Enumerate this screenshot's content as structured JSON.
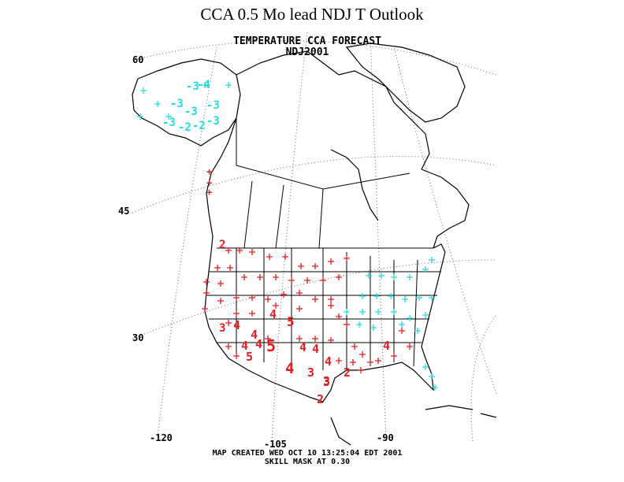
{
  "slide_title": "CCA 0.5 Mo lead NDJ T Outlook",
  "map_title": "TEMPERATURE CCA FORECAST",
  "map_season": "NDJ2001",
  "lat_labels": [
    "60",
    "45",
    "30"
  ],
  "lon_labels": [
    "-120",
    "-105",
    "-90"
  ],
  "footer_created": "MAP CREATED WED OCT 10 13:25:04 EDT 2001",
  "footer_skill": "SKILL MASK AT 0.30",
  "colors": {
    "warm": "#e81c1c",
    "cold": "#22dde0",
    "map_lines": "#000000",
    "grid": "#666666"
  },
  "forecast_values_warm": [
    "2",
    "4",
    "4",
    "5",
    "3",
    "4",
    "4",
    "4",
    "5",
    "5",
    "4",
    "4",
    "4",
    "3",
    "3",
    "4",
    "3",
    "2",
    "2",
    "4"
  ],
  "forecast_values_cold": [
    "-3",
    "-3",
    "-3",
    "-3",
    "-3",
    "-2",
    "-2",
    "-3",
    "-4"
  ]
}
